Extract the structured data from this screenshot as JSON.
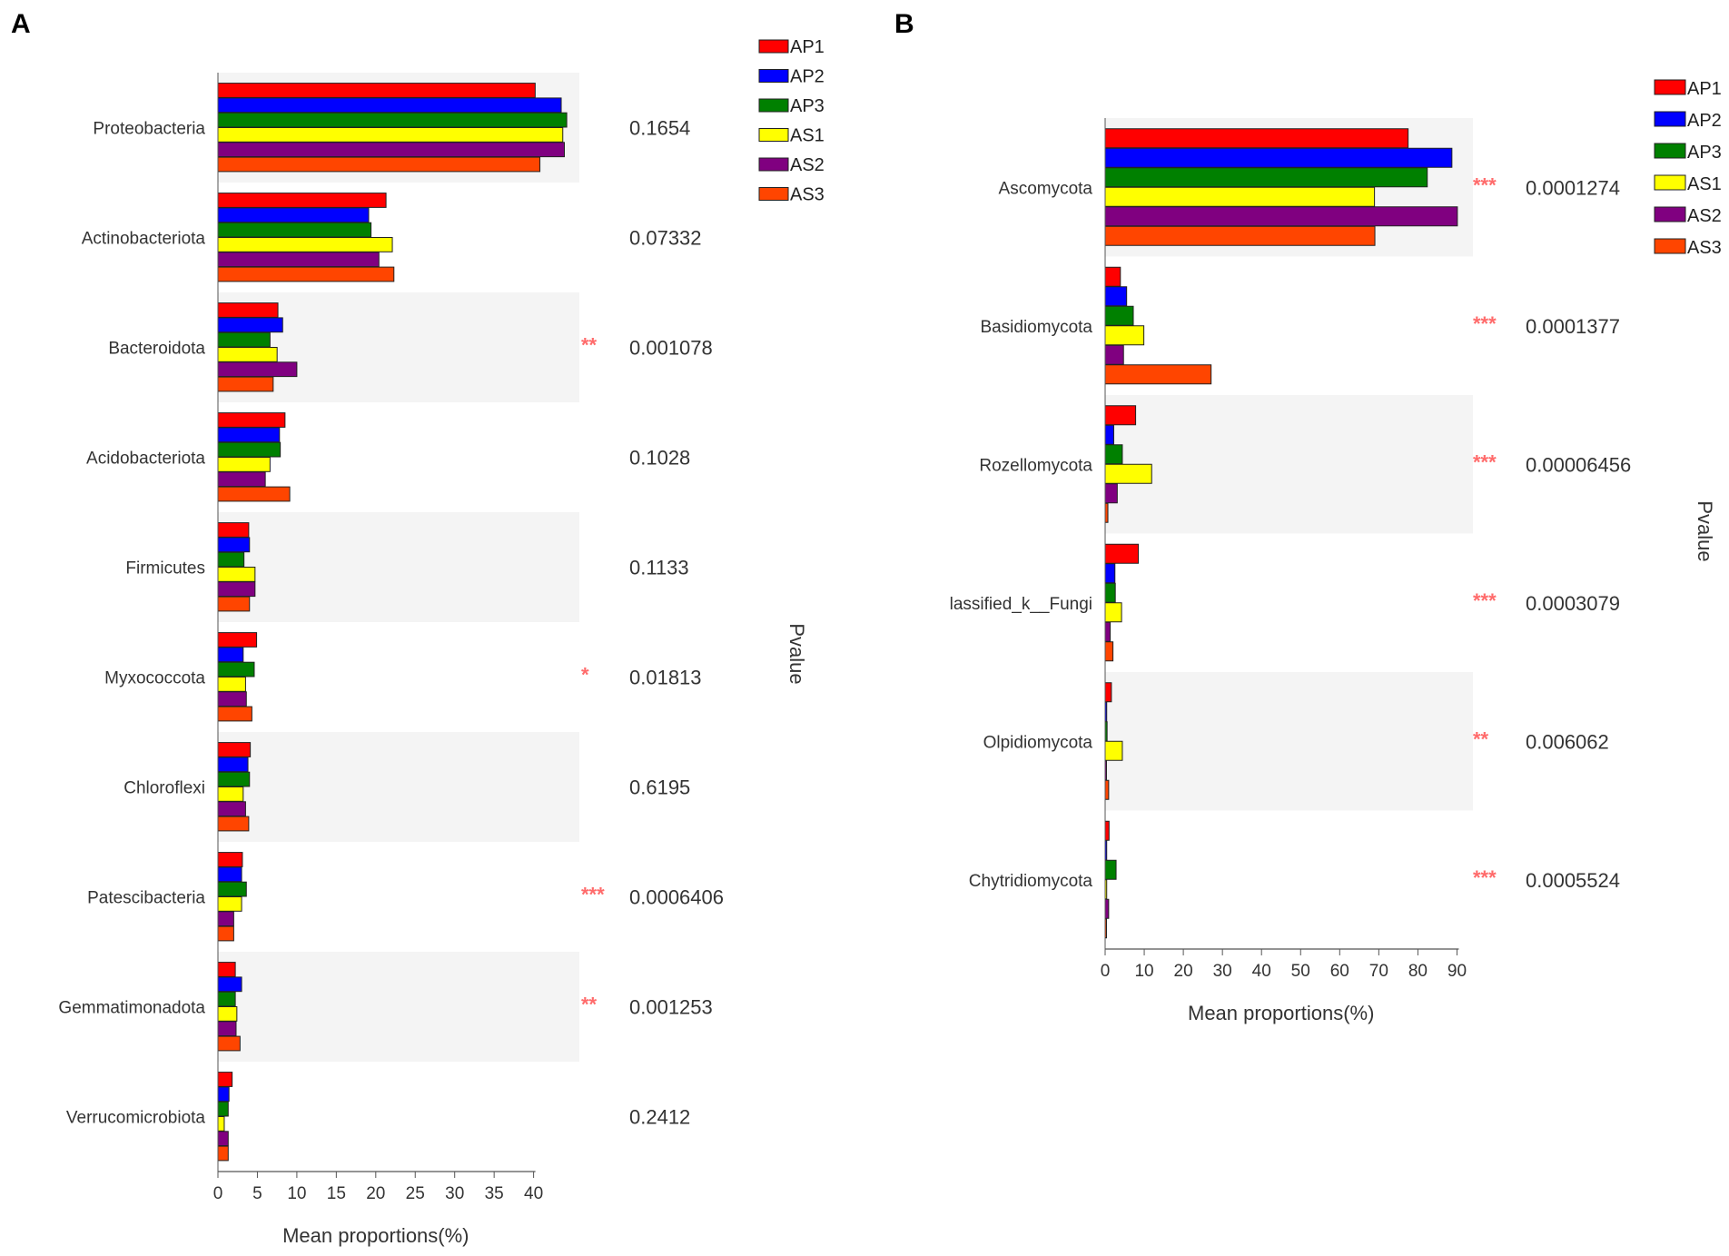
{
  "panels": [
    {
      "letter": "A",
      "pvalue_axis_title": "Pvalue",
      "legend": [
        {
          "label": "AP1",
          "color": "#ff0000"
        },
        {
          "label": "AP2",
          "color": "#0000ff"
        },
        {
          "label": "AP3",
          "color": "#008000"
        },
        {
          "label": "AS1",
          "color": "#ffff00"
        },
        {
          "label": "AS2",
          "color": "#800080"
        },
        {
          "label": "AS3",
          "color": "#ff4500"
        }
      ]
    },
    {
      "letter": "B",
      "pvalue_axis_title": "Pvalue",
      "legend": [
        {
          "label": "AP1",
          "color": "#ff0000"
        },
        {
          "label": "AP2",
          "color": "#0000ff"
        },
        {
          "label": "AP3",
          "color": "#008000"
        },
        {
          "label": "AS1",
          "color": "#ffff00"
        },
        {
          "label": "AS2",
          "color": "#800080"
        },
        {
          "label": "AS3",
          "color": "#ff4500"
        }
      ]
    }
  ],
  "chart_data": [
    {
      "type": "bar",
      "orientation": "horizontal",
      "title": "",
      "xlabel": "Mean proportions(%)",
      "ylabel": "",
      "xlim": [
        0,
        45
      ],
      "xticks": [
        "0",
        "5",
        "10",
        "15",
        "20",
        "25",
        "30",
        "35",
        "40"
      ],
      "categories": [
        "Proteobacteria",
        "Actinobacteriota",
        "Bacteroidota",
        "Acidobacteriota",
        "Firmicutes",
        "Myxococcota",
        "Chloroflexi",
        "Patescibacteria",
        "Gemmatimonadota",
        "Verrucomicrobiota"
      ],
      "series": [
        {
          "name": "AP1",
          "color": "#ff0000",
          "values": [
            40.2,
            21.3,
            7.6,
            8.5,
            3.9,
            4.9,
            4.1,
            3.1,
            2.2,
            1.8
          ]
        },
        {
          "name": "AP2",
          "color": "#0000ff",
          "values": [
            43.5,
            19.1,
            8.2,
            7.8,
            4.0,
            3.2,
            3.8,
            3.0,
            3.0,
            1.4
          ]
        },
        {
          "name": "AP3",
          "color": "#008000",
          "values": [
            44.2,
            19.4,
            6.6,
            7.9,
            3.3,
            4.6,
            4.0,
            3.6,
            2.2,
            1.3
          ]
        },
        {
          "name": "AS1",
          "color": "#ffff00",
          "values": [
            43.7,
            22.1,
            7.5,
            6.6,
            4.7,
            3.5,
            3.2,
            3.0,
            2.4,
            0.8
          ]
        },
        {
          "name": "AS2",
          "color": "#800080",
          "values": [
            43.9,
            20.4,
            10.0,
            6.0,
            4.7,
            3.6,
            3.5,
            2.0,
            2.3,
            1.3
          ]
        },
        {
          "name": "AS3",
          "color": "#ff4500",
          "values": [
            40.8,
            22.3,
            7.0,
            9.1,
            4.0,
            4.3,
            3.9,
            2.0,
            2.8,
            1.3
          ]
        }
      ],
      "significance": [
        "",
        "",
        "**",
        "",
        "",
        "*",
        "",
        "***",
        "**",
        ""
      ],
      "pvalues": [
        "0.1654",
        "0.07332",
        "0.001078",
        "0.1028",
        "0.1133",
        "0.01813",
        "0.6195",
        "0.0006406",
        "0.001253",
        "0.2412"
      ],
      "pvalue_axis_title": "Pvalue",
      "legend_position": "top-right"
    },
    {
      "type": "bar",
      "orientation": "horizontal",
      "title": "",
      "xlabel": "Mean proportions(%)",
      "ylabel": "",
      "xlim": [
        0,
        95
      ],
      "xticks": [
        "0",
        "10",
        "20",
        "30",
        "40",
        "50",
        "60",
        "70",
        "80",
        "90"
      ],
      "categories": [
        "Ascomycota",
        "Basidiomycota",
        "Rozellomycota",
        "lassified_k__Fungi",
        "Olpidiomycota",
        "Chytridiomycota"
      ],
      "series": [
        {
          "name": "AP1",
          "color": "#ff0000",
          "values": [
            77.5,
            3.9,
            7.8,
            8.5,
            1.6,
            1.0
          ]
        },
        {
          "name": "AP2",
          "color": "#0000ff",
          "values": [
            88.7,
            5.5,
            2.2,
            2.5,
            0.4,
            0.4
          ]
        },
        {
          "name": "AP3",
          "color": "#008000",
          "values": [
            82.4,
            7.2,
            4.4,
            2.6,
            0.5,
            2.8
          ]
        },
        {
          "name": "AS1",
          "color": "#ffff00",
          "values": [
            68.9,
            9.9,
            11.9,
            4.2,
            4.4,
            0.4
          ]
        },
        {
          "name": "AS2",
          "color": "#800080",
          "values": [
            90.1,
            4.7,
            3.1,
            1.3,
            0.3,
            0.9
          ]
        },
        {
          "name": "AS3",
          "color": "#ff4500",
          "values": [
            69.0,
            27.1,
            0.7,
            2.0,
            0.9,
            0.3
          ]
        }
      ],
      "significance": [
        "***",
        "***",
        "***",
        "***",
        "**",
        "***"
      ],
      "pvalues": [
        "0.0001274",
        "0.0001377",
        "0.00006456",
        "0.0003079",
        "0.006062",
        "0.0005524"
      ],
      "pvalue_axis_title": "Pvalue",
      "legend_position": "top-right"
    }
  ]
}
